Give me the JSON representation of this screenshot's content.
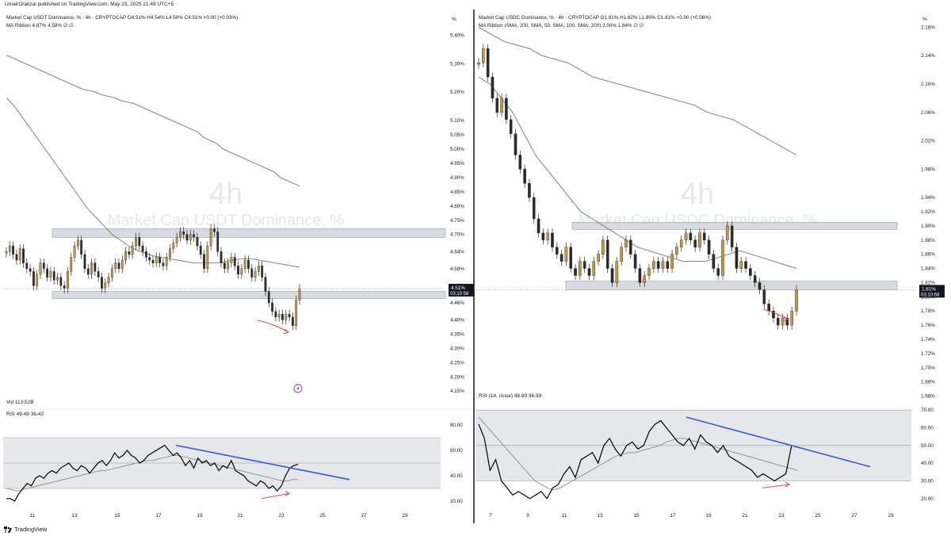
{
  "header": {
    "text": "UmairOrakzai published on TradingView.com, May 23, 2025 21:49 UTC+5"
  },
  "footer": {
    "brand": "TradingView"
  },
  "panels": [
    {
      "legend_line1": "Market Cap USDT Dominance, % · 4h · CRYPTOCAP  O4.51%  H4.54%  L4.50%  C4.51%  +0.00 (+0.03%)",
      "legend_line2": "MA Ribbon  4.87%  4.58%  ∅  ∅",
      "watermark_big": "4h",
      "watermark_sub": "Market Cap USDT Dominance, %",
      "pct_symbol": "%",
      "price_tag": "4.51%",
      "countdown": "03:10:58",
      "vol_label": "Vol  113.52B",
      "rsi_label": "RSI  49.49  36.43",
      "alert_icon": "lightning-icon"
    },
    {
      "legend_line1": "Market Cap USDC Dominance, % · 4h · CRYPTOCAP  O1.81%  H1.82%  L1.80%  C1.81%  +0.00 (+0.06%)",
      "legend_line2": "MA Ribbon (SMA, 200, SMA, 50, SMA, 100, SMA, 200)  2.00%  1.84%  ∅  ∅",
      "watermark_big": "4h",
      "watermark_sub": "Market Cap USDC Dominance, %",
      "pct_symbol": "%",
      "price_tag": "1.81%",
      "countdown": "03:10:58",
      "rsi_label": "RSI (14, close)  48.89  36.99"
    }
  ],
  "colors": {
    "up": "#c8963e",
    "down": "#2a2a2a",
    "ma50": "#8a8a8a",
    "ma200": "#8a8a8a",
    "trend": "#2e5bdc",
    "arrow": "#e8424a",
    "zone": "#d1d4dc"
  },
  "chart_data": [
    {
      "type": "candlestick",
      "title": "Market Cap USDT Dominance, %",
      "timeframe": "4h",
      "y_ticks": [
        "5.40%",
        "5.30%",
        "5.20%",
        "5.10%",
        "5.05%",
        "5.00%",
        "4.95%",
        "4.90%",
        "4.85%",
        "4.80%",
        "4.75%",
        "4.70%",
        "4.64%",
        "4.58%",
        "4.52%",
        "4.46%",
        "4.40%",
        "4.35%",
        "4.30%",
        "4.25%",
        "4.20%",
        "4.15%"
      ],
      "x_ticks": [
        "11",
        "13",
        "15",
        "17",
        "19",
        "21",
        "23",
        "25",
        "27",
        "29"
      ],
      "ylim": [
        4.12,
        5.44
      ],
      "series_close": [
        4.64,
        4.66,
        4.63,
        4.61,
        4.65,
        4.6,
        4.58,
        4.57,
        4.52,
        4.56,
        4.6,
        4.58,
        4.55,
        4.57,
        4.54,
        4.55,
        4.52,
        4.51,
        4.57,
        4.62,
        4.66,
        4.68,
        4.63,
        4.58,
        4.56,
        4.6,
        4.57,
        4.55,
        4.51,
        4.53,
        4.55,
        4.58,
        4.6,
        4.58,
        4.61,
        4.64,
        4.63,
        4.66,
        4.69,
        4.66,
        4.64,
        4.62,
        4.61,
        4.6,
        4.62,
        4.6,
        4.59,
        4.62,
        4.65,
        4.67,
        4.69,
        4.71,
        4.7,
        4.68,
        4.7,
        4.69,
        4.66,
        4.63,
        4.58,
        4.66,
        4.72,
        4.71,
        4.64,
        4.6,
        4.58,
        4.6,
        4.62,
        4.59,
        4.56,
        4.58,
        4.61,
        4.58,
        4.55,
        4.57,
        4.59,
        4.55,
        4.5,
        4.46,
        4.43,
        4.41,
        4.42,
        4.4,
        4.42,
        4.41,
        4.38,
        4.47,
        4.51
      ],
      "ma200": [
        5.33,
        5.32,
        5.31,
        5.3,
        5.29,
        5.28,
        5.27,
        5.26,
        5.25,
        5.24,
        5.23,
        5.22,
        5.21,
        5.205,
        5.2,
        5.19,
        5.185,
        5.18,
        5.17,
        5.165,
        5.16,
        5.15,
        5.14,
        5.13,
        5.12,
        5.11,
        5.1,
        5.09,
        5.08,
        5.07,
        5.06,
        5.04,
        5.03,
        5.02,
        5.0,
        4.99,
        4.98,
        4.97,
        4.96,
        4.95,
        4.94,
        4.93,
        4.92,
        4.9,
        4.89,
        4.88,
        4.87
      ],
      "ma50": [
        5.18,
        5.15,
        5.11,
        5.07,
        5.03,
        4.99,
        4.95,
        4.91,
        4.87,
        4.83,
        4.79,
        4.76,
        4.73,
        4.7,
        4.68,
        4.66,
        4.645,
        4.635,
        4.625,
        4.62,
        4.615,
        4.61,
        4.605,
        4.6,
        4.6,
        4.6,
        4.6,
        4.605,
        4.61,
        4.615,
        4.615,
        4.61,
        4.605,
        4.6,
        4.595,
        4.59,
        4.585
      ],
      "zones": [
        [
          4.69,
          4.72
        ],
        [
          4.475,
          4.5
        ]
      ],
      "rsi": {
        "ylim": [
          15,
          90
        ],
        "y_ticks": [
          "80.00",
          "60.00",
          "40.00",
          "20.00"
        ],
        "band": [
          30,
          70
        ],
        "midline": 50,
        "values": [
          22,
          22,
          20,
          26,
          30,
          34,
          32,
          38,
          40,
          38,
          42,
          44,
          42,
          46,
          48,
          50,
          46,
          44,
          48,
          46,
          42,
          46,
          50,
          52,
          48,
          52,
          58,
          54,
          56,
          60,
          56,
          54,
          50,
          52,
          56,
          58,
          60,
          62,
          64,
          60,
          56,
          58,
          54,
          48,
          52,
          46,
          54,
          50,
          52,
          48,
          50,
          44,
          48,
          46,
          52,
          44,
          42,
          40,
          36,
          34,
          32,
          36,
          34,
          30,
          32,
          28,
          32,
          40,
          46,
          48,
          49
        ],
        "signal": [
          30,
          29,
          28,
          29,
          30,
          31,
          32,
          33,
          34,
          35,
          36,
          37,
          38,
          39,
          40,
          41,
          42,
          43,
          44,
          44,
          45,
          46,
          47,
          48,
          49,
          50,
          51,
          52,
          52,
          53,
          54,
          55,
          56,
          56,
          55,
          54,
          53,
          52,
          51,
          50,
          49,
          48,
          47,
          46,
          45,
          44,
          43,
          42,
          41,
          40,
          39,
          38,
          37,
          36,
          36,
          37,
          37
        ]
      }
    },
    {
      "type": "candlestick",
      "title": "Market Cap USDC Dominance, %",
      "timeframe": "4h",
      "y_ticks": [
        "2.18%",
        "2.14%",
        "2.10%",
        "2.06%",
        "2.02%",
        "1.98%",
        "1.94%",
        "1.92%",
        "1.90%",
        "1.88%",
        "1.86%",
        "1.84%",
        "1.82%",
        "1.80%",
        "1.78%",
        "1.76%",
        "1.74%",
        "1.72%",
        "1.70%",
        "1.68%",
        "1.66%"
      ],
      "x_ticks": [
        "7",
        "9",
        "11",
        "13",
        "15",
        "17",
        "19",
        "21",
        "23",
        "25",
        "27",
        "29"
      ],
      "ylim": [
        1.655,
        2.185
      ],
      "series_close": [
        2.13,
        2.15,
        2.11,
        2.08,
        2.06,
        2.08,
        2.05,
        2.03,
        2.0,
        1.98,
        1.96,
        1.94,
        1.91,
        1.89,
        1.88,
        1.89,
        1.87,
        1.86,
        1.85,
        1.87,
        1.84,
        1.83,
        1.85,
        1.84,
        1.83,
        1.85,
        1.86,
        1.88,
        1.84,
        1.82,
        1.85,
        1.87,
        1.88,
        1.86,
        1.84,
        1.82,
        1.83,
        1.84,
        1.85,
        1.84,
        1.85,
        1.84,
        1.86,
        1.87,
        1.88,
        1.89,
        1.88,
        1.87,
        1.89,
        1.88,
        1.86,
        1.84,
        1.83,
        1.88,
        1.9,
        1.87,
        1.84,
        1.85,
        1.84,
        1.83,
        1.82,
        1.81,
        1.79,
        1.78,
        1.77,
        1.76,
        1.77,
        1.76,
        1.78,
        1.81
      ],
      "ma200": [
        2.18,
        2.17,
        2.16,
        2.155,
        2.15,
        2.14,
        2.135,
        2.13,
        2.12,
        2.11,
        2.105,
        2.1,
        2.095,
        2.09,
        2.085,
        2.08,
        2.075,
        2.07,
        2.06,
        2.055,
        2.05,
        2.04,
        2.03,
        2.02,
        2.01,
        2.0
      ],
      "ma50": [
        2.11,
        2.1,
        2.08,
        2.06,
        2.03,
        2.0,
        1.98,
        1.96,
        1.94,
        1.92,
        1.91,
        1.9,
        1.89,
        1.88,
        1.87,
        1.865,
        1.86,
        1.855,
        1.85,
        1.85,
        1.85,
        1.855,
        1.86,
        1.865,
        1.86,
        1.855,
        1.85,
        1.845,
        1.84
      ],
      "zones": [
        [
          1.895,
          1.905
        ],
        [
          1.81,
          1.822
        ]
      ],
      "rsi": {
        "ylim": [
          15,
          75
        ],
        "y_ticks": [
          "70.00",
          "60.00",
          "50.00",
          "40.00",
          "30.00",
          "20.00"
        ],
        "band": [
          30,
          70
        ],
        "midline": 50,
        "values": [
          62,
          54,
          36,
          42,
          30,
          26,
          22,
          24,
          22,
          20,
          22,
          24,
          20,
          26,
          28,
          34,
          38,
          32,
          42,
          44,
          46,
          40,
          50,
          54,
          48,
          44,
          50,
          52,
          48,
          50,
          58,
          62,
          64,
          60,
          56,
          52,
          50,
          54,
          48,
          56,
          52,
          50,
          46,
          50,
          44,
          42,
          40,
          38,
          36,
          32,
          34,
          32,
          30,
          32,
          34,
          50,
          49
        ],
        "signal": [
          66,
          62,
          58,
          54,
          50,
          46,
          42,
          38,
          34,
          30,
          28,
          26,
          25,
          26,
          28,
          30,
          32,
          34,
          36,
          38,
          40,
          42,
          44,
          45,
          46,
          46,
          47,
          48,
          49,
          50,
          52,
          53,
          54,
          54,
          53,
          52,
          51,
          50,
          49,
          48,
          47,
          46,
          45,
          44,
          43,
          42,
          41,
          40,
          39,
          38,
          37,
          36
        ]
      }
    }
  ]
}
